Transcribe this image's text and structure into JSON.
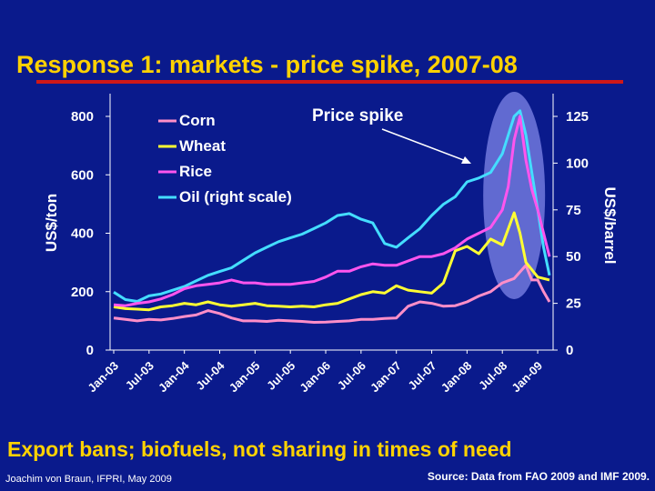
{
  "slide": {
    "title": "Response 1: markets - price spike, 2007-08",
    "caption": "Export bans; biofuels, not sharing in times of need",
    "footer_left": "Joachim von Braun, IFPRI, May 2009",
    "footer_right": "Source: Data from FAO 2009 and IMF 2009."
  },
  "chart_data": {
    "type": "line",
    "title": "",
    "ylabel": "US$/ton",
    "y2label": "US$/barrel",
    "ylim": [
      0,
      800
    ],
    "y_ticks": [
      0,
      200,
      400,
      600,
      800
    ],
    "y2lim": [
      0,
      125
    ],
    "y2_ticks": [
      0,
      25,
      50,
      75,
      100,
      125
    ],
    "x_tick_labels": [
      "Jan-03",
      "Jul-03",
      "Jan-04",
      "Jul-04",
      "Jan-05",
      "Jul-05",
      "Jan-06",
      "Jul-06",
      "Jan-07",
      "Jul-07",
      "Jan-08",
      "Jul-08",
      "Jan-09"
    ],
    "x_unit": "months since Jan-03",
    "x_range": [
      0,
      74
    ],
    "legend_position": "top-left",
    "annotation": "Price spike",
    "colors": {
      "background": "#0a1a8c",
      "title": "#ffd200",
      "title_rule": "#d01818",
      "highlight": "#7f86e8"
    },
    "series": [
      {
        "name": "Corn",
        "axis": "left",
        "color": "#ff8ec8",
        "x": [
          0,
          2,
          4,
          6,
          8,
          10,
          12,
          14,
          16,
          18,
          20,
          22,
          24,
          26,
          28,
          30,
          32,
          34,
          36,
          38,
          40,
          42,
          44,
          46,
          48,
          50,
          52,
          54,
          56,
          58,
          60,
          62,
          64,
          66,
          68,
          70,
          71,
          72,
          73,
          74
        ],
        "y": [
          110,
          105,
          100,
          105,
          103,
          108,
          115,
          120,
          135,
          125,
          110,
          100,
          100,
          98,
          102,
          100,
          98,
          95,
          96,
          98,
          100,
          105,
          105,
          108,
          110,
          150,
          165,
          160,
          150,
          152,
          165,
          185,
          200,
          230,
          245,
          290,
          240,
          240,
          200,
          165
        ]
      },
      {
        "name": "Wheat",
        "axis": "left",
        "color": "#ffff33",
        "x": [
          0,
          2,
          4,
          6,
          8,
          10,
          12,
          14,
          16,
          18,
          20,
          22,
          24,
          26,
          28,
          30,
          32,
          34,
          36,
          38,
          40,
          42,
          44,
          46,
          48,
          50,
          52,
          54,
          56,
          58,
          60,
          62,
          64,
          66,
          68,
          69,
          70,
          72,
          74
        ],
        "y": [
          148,
          142,
          140,
          138,
          148,
          152,
          160,
          155,
          165,
          155,
          150,
          155,
          160,
          152,
          150,
          148,
          150,
          148,
          155,
          160,
          175,
          190,
          200,
          195,
          220,
          205,
          200,
          195,
          230,
          340,
          355,
          330,
          380,
          360,
          470,
          400,
          300,
          250,
          240
        ]
      },
      {
        "name": "Rice",
        "axis": "left",
        "color": "#ff55ee",
        "x": [
          0,
          2,
          4,
          6,
          8,
          10,
          12,
          14,
          16,
          18,
          20,
          22,
          24,
          26,
          28,
          30,
          32,
          34,
          36,
          38,
          40,
          42,
          44,
          46,
          48,
          50,
          52,
          54,
          56,
          58,
          60,
          62,
          64,
          66,
          67,
          68,
          69,
          70,
          71,
          72,
          74
        ],
        "y": [
          155,
          152,
          160,
          165,
          175,
          190,
          210,
          220,
          225,
          230,
          240,
          230,
          230,
          225,
          225,
          225,
          230,
          235,
          250,
          270,
          270,
          285,
          295,
          290,
          290,
          305,
          320,
          320,
          330,
          350,
          380,
          400,
          420,
          480,
          560,
          720,
          800,
          650,
          550,
          480,
          320
        ]
      },
      {
        "name": "Oil (right scale)",
        "axis": "right",
        "color": "#44ddff",
        "x": [
          0,
          2,
          4,
          6,
          8,
          10,
          12,
          14,
          16,
          18,
          20,
          22,
          24,
          26,
          28,
          30,
          32,
          34,
          36,
          38,
          40,
          42,
          44,
          46,
          48,
          50,
          52,
          54,
          56,
          58,
          60,
          62,
          64,
          66,
          67,
          68,
          69,
          70,
          71,
          72,
          73,
          74
        ],
        "y": [
          31,
          27,
          26,
          29,
          30,
          32,
          34,
          37,
          40,
          42,
          44,
          48,
          52,
          55,
          58,
          60,
          62,
          65,
          68,
          72,
          73,
          70,
          68,
          57,
          55,
          60,
          65,
          72,
          78,
          82,
          90,
          92,
          95,
          105,
          115,
          125,
          128,
          115,
          95,
          75,
          55,
          40
        ]
      }
    ]
  }
}
